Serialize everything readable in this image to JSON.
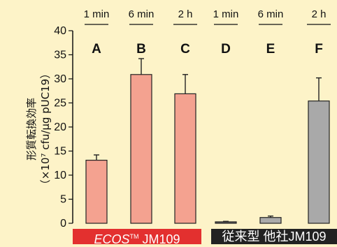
{
  "chart_data": {
    "type": "bar",
    "categories": [
      "A",
      "B",
      "C",
      "D",
      "E",
      "F"
    ],
    "time_labels": [
      "1 min",
      "6 min",
      "2 h",
      "1 min",
      "6 min",
      "2 h"
    ],
    "values": [
      13.1,
      30.9,
      26.9,
      0.3,
      1.2,
      25.4
    ],
    "errors": [
      1.1,
      3.3,
      4.0,
      0.1,
      0.3,
      4.8
    ],
    "bar_colors": [
      "#f4a290",
      "#f4a290",
      "#f4a290",
      "#666666",
      "#aaaaaa",
      "#a9a9a9"
    ],
    "ylim": [
      0,
      40
    ],
    "yticks": [
      0,
      5,
      10,
      15,
      20,
      25,
      30,
      35,
      40
    ],
    "ylabel_line1": "形質転換効率",
    "ylabel_line2": "（×10⁷ cfu/µg pUC19）",
    "groups": [
      {
        "ecos": "ECOS",
        "tm": "TM",
        "name": " JM109"
      },
      {
        "label": "従来型 他社JM109"
      }
    ]
  },
  "colors": {
    "background": "#fdf3c8",
    "red_band": "#e3302f",
    "black_band": "#222222"
  }
}
